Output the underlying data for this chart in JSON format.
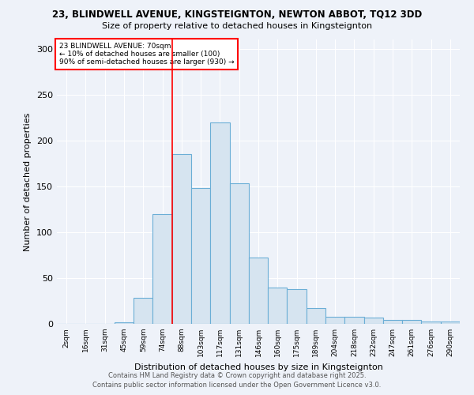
{
  "title_line1": "23, BLINDWELL AVENUE, KINGSTEIGNTON, NEWTON ABBOT, TQ12 3DD",
  "title_line2": "Size of property relative to detached houses in Kingsteignton",
  "xlabel": "Distribution of detached houses by size in Kingsteignton",
  "ylabel": "Number of detached properties",
  "bar_labels": [
    "2sqm",
    "16sqm",
    "31sqm",
    "45sqm",
    "59sqm",
    "74sqm",
    "88sqm",
    "103sqm",
    "117sqm",
    "131sqm",
    "146sqm",
    "160sqm",
    "175sqm",
    "189sqm",
    "204sqm",
    "218sqm",
    "232sqm",
    "247sqm",
    "261sqm",
    "276sqm",
    "290sqm"
  ],
  "bar_values": [
    0,
    0,
    0,
    2,
    28,
    120,
    185,
    148,
    220,
    153,
    72,
    40,
    38,
    17,
    8,
    8,
    7,
    4,
    4,
    3,
    3
  ],
  "bar_color": "#d6e4f0",
  "bar_edge_color": "#6baed6",
  "red_line_index": 5,
  "annotation_title": "23 BLINDWELL AVENUE: 70sqm",
  "annotation_line2": "← 10% of detached houses are smaller (100)",
  "annotation_line3": "90% of semi-detached houses are larger (930) →",
  "ylim": [
    0,
    310
  ],
  "yticks": [
    0,
    50,
    100,
    150,
    200,
    250,
    300
  ],
  "footer_line1": "Contains HM Land Registry data © Crown copyright and database right 2025.",
  "footer_line2": "Contains public sector information licensed under the Open Government Licence v3.0.",
  "bg_color": "#eef2f9",
  "plot_bg_color": "#eef2f9"
}
